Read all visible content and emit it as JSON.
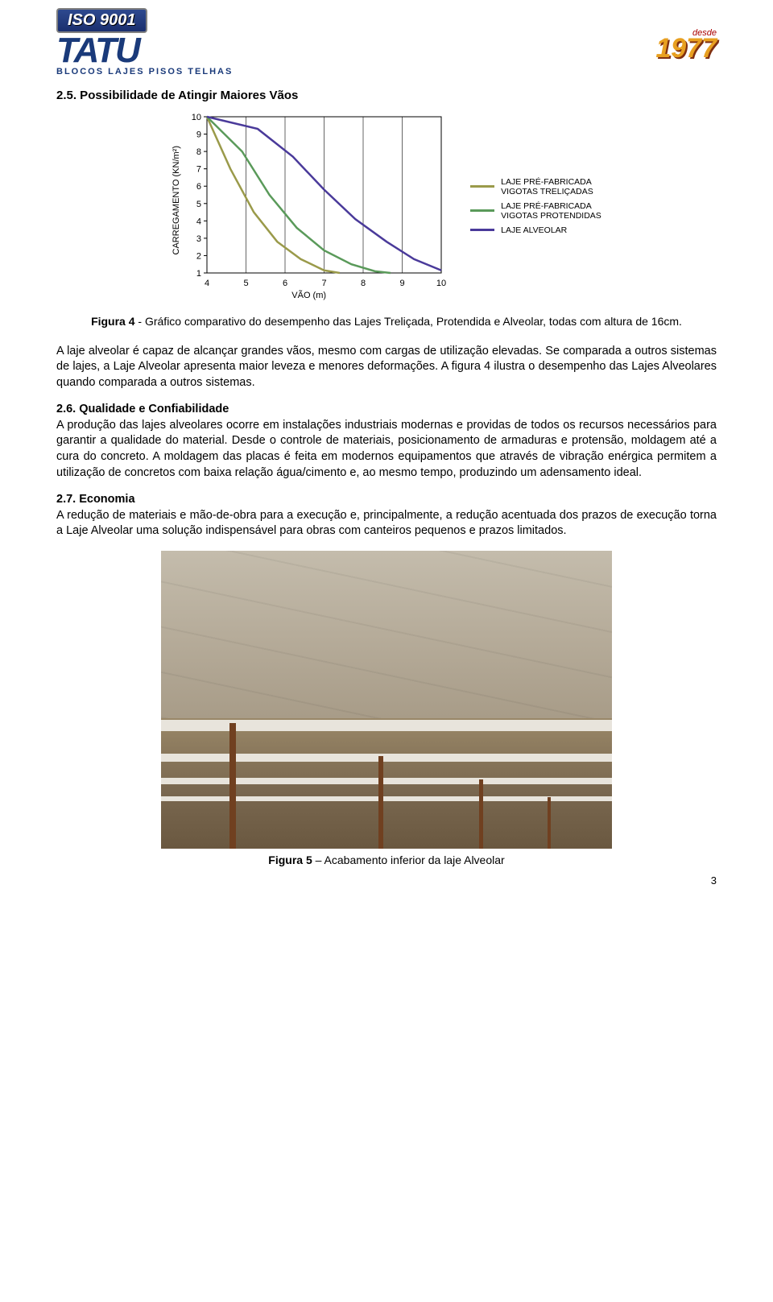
{
  "header": {
    "iso": "ISO 9001",
    "brand": "TATU",
    "brand_sub": "BLOCOS LAJES PISOS TELHAS",
    "desde": "desde",
    "year": "1977"
  },
  "section_2_5": {
    "title": "2.5. Possibilidade de Atingir Maiores Vãos"
  },
  "chart": {
    "type": "line",
    "y_label": "CARREGAMENTO (KN/m²)",
    "x_label": "VÃO (m)",
    "x_ticks": [
      4,
      5,
      6,
      7,
      8,
      9,
      10
    ],
    "y_ticks": [
      1,
      2,
      3,
      4,
      5,
      6,
      7,
      8,
      9,
      10
    ],
    "xlim": [
      4,
      10
    ],
    "ylim": [
      1,
      10
    ],
    "background_color": "#ffffff",
    "frame_color": "#000000",
    "grid_color": "#000000",
    "tick_fontsize": 11,
    "label_fontsize": 11,
    "line_width": 2.5,
    "series": [
      {
        "name": "LAJE PRÉ-FABRICADA VIGOTAS TRELIÇADAS",
        "color": "#9a9a4a",
        "points": [
          [
            4,
            10
          ],
          [
            4.6,
            7
          ],
          [
            5.2,
            4.5
          ],
          [
            5.8,
            2.8
          ],
          [
            6.4,
            1.8
          ],
          [
            7,
            1.15
          ],
          [
            7.4,
            1
          ]
        ]
      },
      {
        "name": "LAJE PRÉ-FABRICADA VIGOTAS PROTENDIDAS",
        "color": "#5a9a5a",
        "points": [
          [
            4,
            10
          ],
          [
            4.9,
            8
          ],
          [
            5.6,
            5.5
          ],
          [
            6.3,
            3.6
          ],
          [
            7,
            2.3
          ],
          [
            7.7,
            1.5
          ],
          [
            8.3,
            1.1
          ],
          [
            8.7,
            1
          ]
        ]
      },
      {
        "name": "LAJE ALVEOLAR",
        "color": "#4a3a9a",
        "points": [
          [
            4,
            10
          ],
          [
            5.3,
            9.3
          ],
          [
            6.2,
            7.7
          ],
          [
            7,
            5.8
          ],
          [
            7.8,
            4.1
          ],
          [
            8.6,
            2.8
          ],
          [
            9.3,
            1.8
          ],
          [
            10,
            1.15
          ]
        ]
      }
    ],
    "legend": [
      {
        "label_l1": "LAJE PRÉ-FABRICADA",
        "label_l2": "VIGOTAS TRELIÇADAS",
        "color": "#9a9a4a"
      },
      {
        "label_l1": "LAJE PRÉ-FABRICADA",
        "label_l2": "VIGOTAS PROTENDIDAS",
        "color": "#5a9a5a"
      },
      {
        "label_l1": "LAJE ALVEOLAR",
        "label_l2": "",
        "color": "#4a3a9a"
      }
    ]
  },
  "figure4_caption_bold": "Figura 4",
  "figure4_caption_rest": " - Gráfico comparativo do desempenho das Lajes Treliçada, Protendida e Alveolar, todas com altura de 16cm.",
  "para1": "A laje alveolar é capaz de alcançar grandes vãos, mesmo com cargas de utilização elevadas. Se comparada a outros sistemas de lajes, a Laje Alveolar apresenta maior leveza e menores deformações. A figura 4 ilustra o desempenho das Lajes Alveolares quando comparada a outros sistemas.",
  "section_2_6": {
    "title": "2.6. Qualidade e Confiabilidade",
    "body": "A produção das lajes alveolares ocorre em instalações industriais modernas e providas de todos os recursos necessários para garantir a qualidade do material. Desde o controle de materiais, posicionamento de armaduras e protensão, moldagem até a cura do concreto. A moldagem das placas é feita em modernos equipamentos que através de vibração enérgica permitem a utilização de concretos com baixa relação água/cimento e, ao mesmo tempo, produzindo um adensamento ideal."
  },
  "section_2_7": {
    "title": "2.7. Economia",
    "body": "A redução de materiais e mão-de-obra para a execução e, principalmente, a redução acentuada dos prazos de execução torna a Laje Alveolar uma solução indispensável para obras com canteiros pequenos e prazos limitados."
  },
  "figure5_caption_bold": "Figura 5",
  "figure5_caption_rest": " – Acabamento inferior da laje Alveolar",
  "page_number": "3",
  "colors": {
    "brand_blue": "#1a3a7a",
    "year_orange": "#e8a020",
    "text": "#000000"
  }
}
